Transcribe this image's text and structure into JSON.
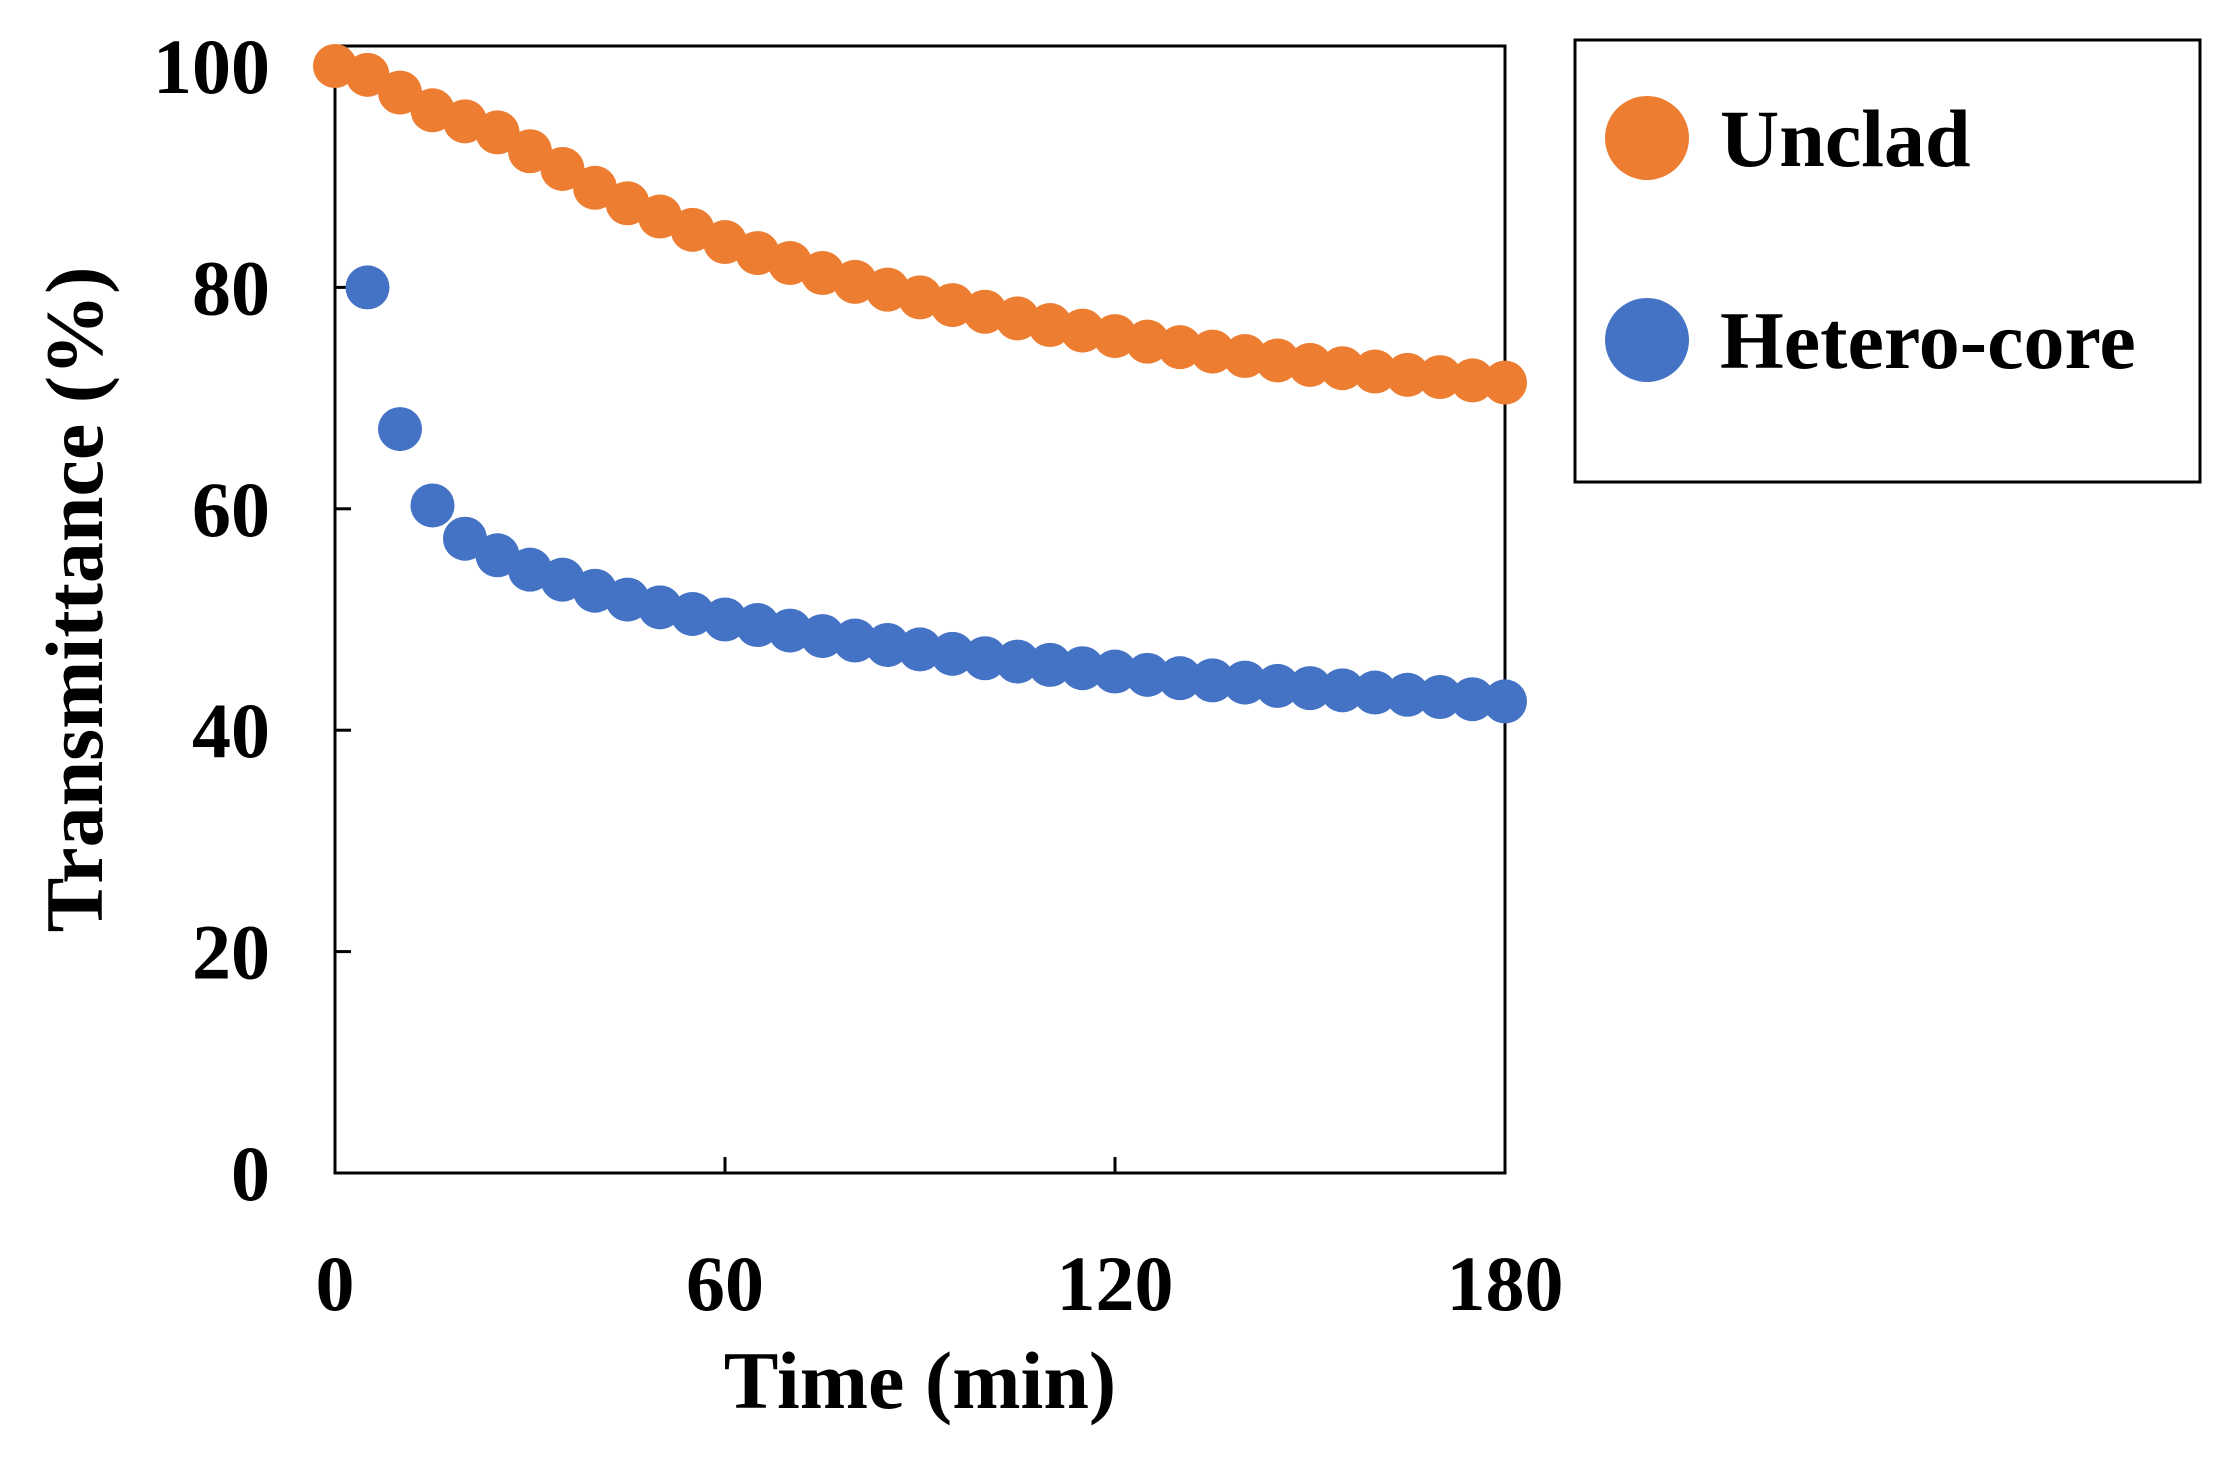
{
  "chart_data": {
    "type": "scatter",
    "title": "",
    "xlabel": "Time (min)",
    "ylabel": "Transmittance (%)",
    "xlim": [
      0,
      180
    ],
    "ylim": [
      0,
      100
    ],
    "xticks": [
      0,
      60,
      120,
      180
    ],
    "yticks": [
      0,
      20,
      40,
      60,
      80,
      100
    ],
    "grid": false,
    "legend_position": "right-top, outside",
    "x": [
      0,
      5,
      10,
      15,
      20,
      25,
      30,
      35,
      40,
      45,
      50,
      55,
      60,
      65,
      70,
      75,
      80,
      85,
      90,
      95,
      100,
      105,
      110,
      115,
      120,
      125,
      130,
      135,
      140,
      145,
      150,
      155,
      160,
      165,
      170,
      175,
      180
    ],
    "series": [
      {
        "name": "Unclad",
        "color": "#ED7D31",
        "values": [
          100,
          99.2,
          97.6,
          96.0,
          95.0,
          94.0,
          92.3,
          90.7,
          89.0,
          87.6,
          86.4,
          85.2,
          84.1,
          83.1,
          82.2,
          81.3,
          80.5,
          79.8,
          79.1,
          78.4,
          77.8,
          77.2,
          76.6,
          76.1,
          75.6,
          75.1,
          74.6,
          74.2,
          73.8,
          73.4,
          73.0,
          72.7,
          72.4,
          72.1,
          71.9,
          71.6,
          71.4
        ]
      },
      {
        "name": "Hetero-core",
        "color": "#4472C4",
        "values": [
          null,
          80.0,
          67.2,
          60.3,
          57.3,
          55.8,
          54.5,
          53.6,
          52.6,
          51.8,
          51.1,
          50.5,
          50.0,
          49.5,
          49.0,
          48.5,
          48.1,
          47.7,
          47.3,
          46.9,
          46.5,
          46.2,
          45.9,
          45.6,
          45.3,
          45.0,
          44.7,
          44.5,
          44.3,
          44.0,
          43.8,
          43.6,
          43.4,
          43.2,
          43.0,
          42.8,
          42.6
        ]
      }
    ]
  }
}
